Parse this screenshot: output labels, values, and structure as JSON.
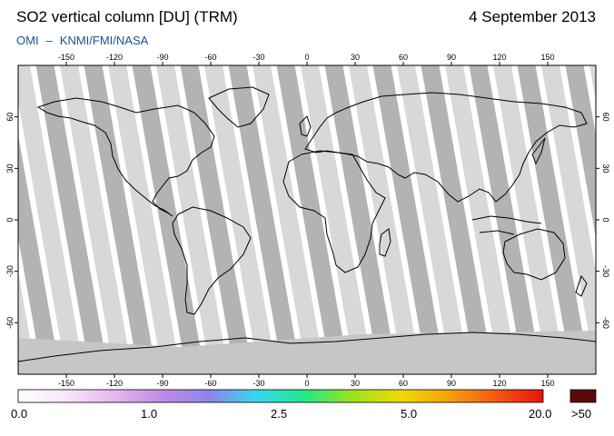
{
  "header": {
    "title": "SO2 vertical column [DU] (TRM)",
    "date": "4 September 2013",
    "source_org": "OMI",
    "source_sep": "–",
    "source_inst": "KNMI/FMI/NASA"
  },
  "map": {
    "projection": "equirectangular",
    "lon_ticks": [
      -150,
      -120,
      -90,
      -60,
      -30,
      0,
      30,
      60,
      90,
      120,
      150
    ],
    "lat_ticks": [
      60,
      30,
      0,
      -30,
      -60
    ],
    "colors": {
      "background": "#ffffff",
      "swath_light": "#d4d4d4",
      "swath_dark": "#a6a6a6",
      "polar_missing": "#c6c6c6",
      "coastline": "#000000"
    }
  },
  "colorbar": {
    "stops": [
      "#ffffff",
      "#f7e6fa",
      "#e6b8ef",
      "#c08be6",
      "#8b86e8",
      "#35d8f0",
      "#22e78a",
      "#9be31a",
      "#f0da08",
      "#f5a20a",
      "#f45a12",
      "#e8120f"
    ],
    "labels": [
      "0.0",
      "1.0",
      "2.5",
      "5.0",
      "20.0"
    ],
    "overflow_label": ">50",
    "overflow_color": "#5a0a0a"
  }
}
